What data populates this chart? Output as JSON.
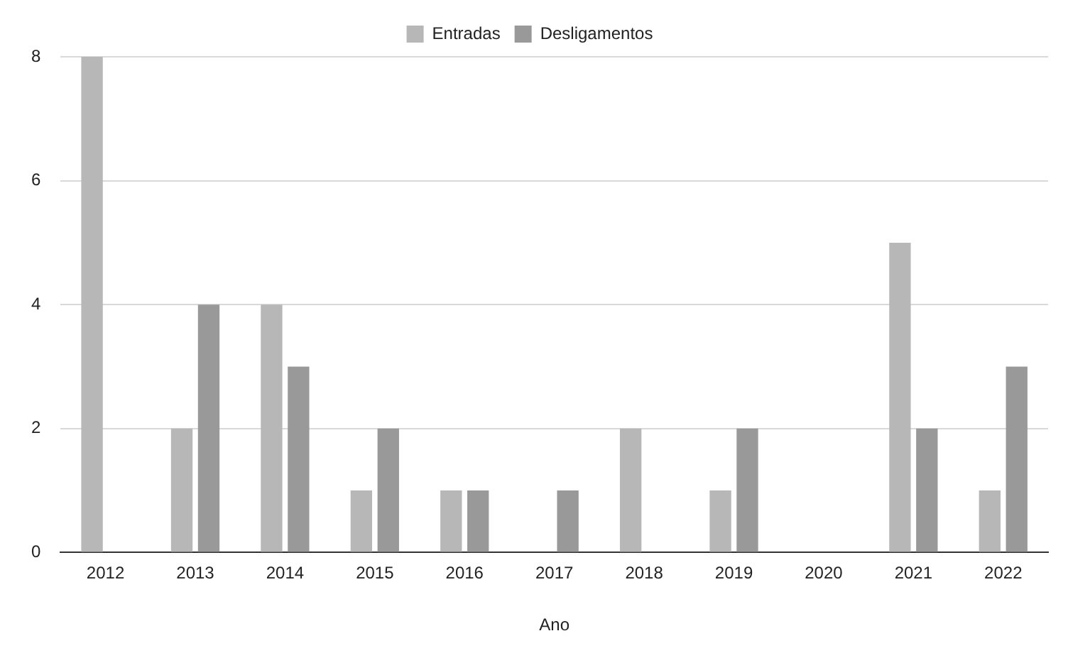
{
  "chart_data": {
    "type": "bar",
    "xlabel": "Ano",
    "categories": [
      "2012",
      "2013",
      "2014",
      "2015",
      "2016",
      "2017",
      "2018",
      "2019",
      "2020",
      "2021",
      "2022"
    ],
    "series": [
      {
        "name": "Entradas",
        "color": "#b7b7b7",
        "values": [
          8,
          2,
          4,
          1,
          1,
          0,
          2,
          1,
          0,
          5,
          1
        ]
      },
      {
        "name": "Desligamentos",
        "color": "#999999",
        "values": [
          0,
          4,
          3,
          2,
          1,
          1,
          0,
          2,
          0,
          2,
          3
        ]
      }
    ],
    "ylim": [
      0,
      8
    ],
    "yticks": [
      0,
      2,
      4,
      6,
      8
    ],
    "grid": "y",
    "legend": "top"
  }
}
